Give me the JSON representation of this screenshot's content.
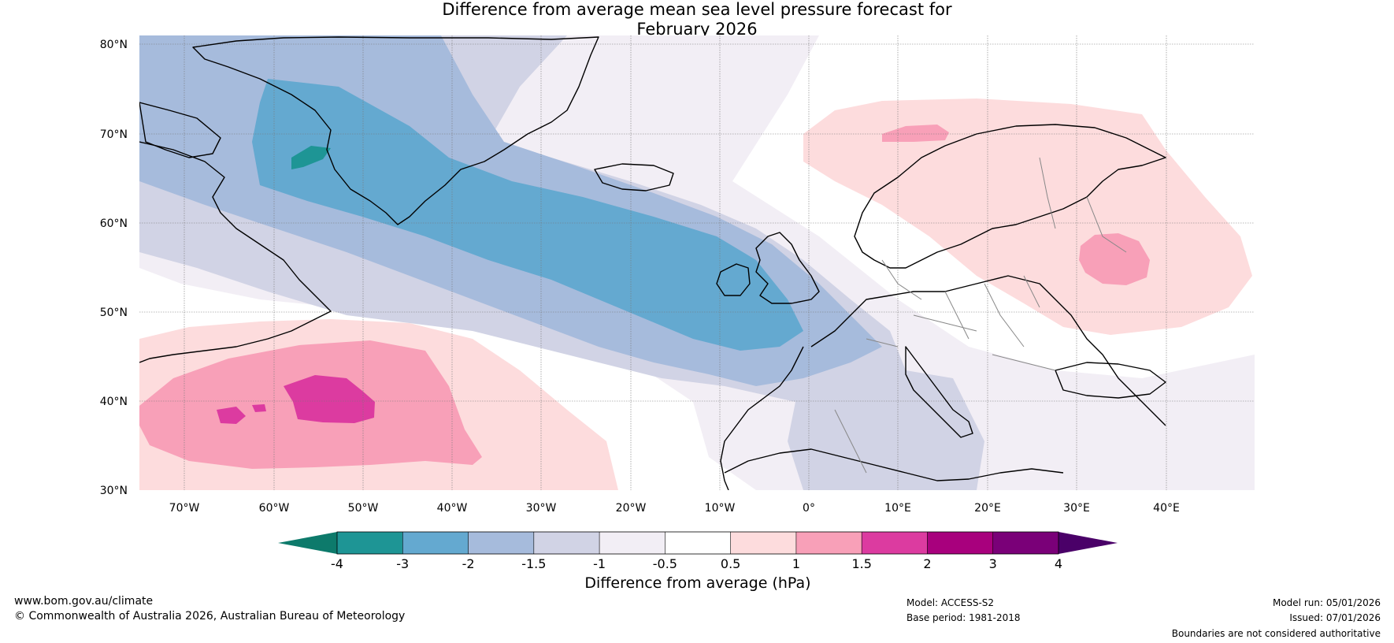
{
  "title": {
    "line1": "Difference from average mean sea level pressure forecast for",
    "line2": "February 2026"
  },
  "map": {
    "lat_labels": [
      "80°N",
      "70°N",
      "60°N",
      "50°N",
      "40°N",
      "30°N"
    ],
    "lon_labels": [
      "70°W",
      "60°W",
      "50°W",
      "40°W",
      "30°W",
      "20°W",
      "10°W",
      "0°",
      "10°E",
      "20°E",
      "30°E",
      "40°E"
    ],
    "lon_range": [
      -75,
      50
    ],
    "lat_range": [
      30,
      80
    ],
    "anomaly_features": [
      {
        "name": "north-atlantic-low",
        "value_range": "-2 to -3 hPa",
        "max_value": -3
      },
      {
        "name": "greenland-low-core",
        "value_range": "-3 to -4 hPa",
        "max_value": -4
      },
      {
        "name": "western-atlantic-high",
        "value_range": "1.5 to 2 hPa",
        "max_value": 2
      },
      {
        "name": "russia-scandinavia-high",
        "value_range": "1 to 1.5 hPa",
        "max_value": 1.5
      }
    ]
  },
  "colorbar": {
    "ticks": [
      "-4",
      "-3",
      "-2",
      "-1.5",
      "-1",
      "-0.5",
      "0.5",
      "1",
      "1.5",
      "2",
      "3",
      "4"
    ],
    "low_end_color": "#0d7a6b",
    "colors": [
      "#1e9595",
      "#64a9d0",
      "#a6bbdc",
      "#d1d3e5",
      "#f2eef5",
      "#ffffff",
      "#fddcdd",
      "#f8a0b8",
      "#dc3ba0",
      "#a8007d",
      "#7a0078"
    ],
    "high_end_color": "#4a0068",
    "label": "Difference from average (hPa)"
  },
  "footer": {
    "website": "www.bom.gov.au/climate",
    "copyright": "© Commonwealth of Australia 2026, Australian Bureau of Meteorology",
    "model": "Model: ACCESS-S2",
    "base_period": "Base period: 1981-2018",
    "model_run": "Model run: 05/01/2026",
    "issued": "Issued: 07/01/2026",
    "disclaimer": "Boundaries are not considered authoritative"
  }
}
